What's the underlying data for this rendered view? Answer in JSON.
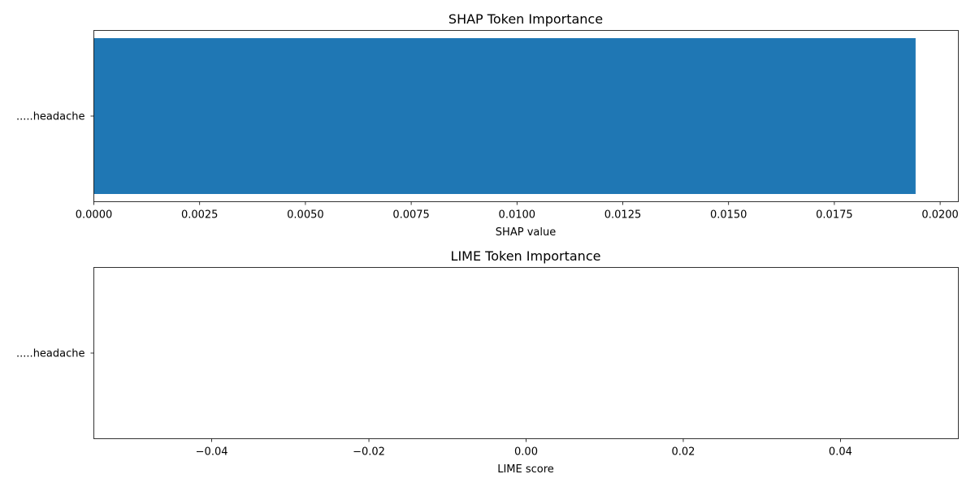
{
  "chart_data": [
    {
      "type": "bar",
      "orientation": "horizontal",
      "title": "SHAP Token Importance",
      "xlabel": "SHAP value",
      "ylabel": "",
      "categories": [
        ".....headache"
      ],
      "values": [
        0.01942
      ],
      "xlim": [
        0,
        0.02043
      ],
      "xticks": [
        0,
        0.0025,
        0.005,
        0.0075,
        0.01,
        0.0125,
        0.015,
        0.0175,
        0.02
      ],
      "xtick_labels": [
        "0.0000",
        "0.0025",
        "0.0050",
        "0.0075",
        "0.0100",
        "0.0125",
        "0.0150",
        "0.0175",
        "0.0200"
      ],
      "bar_color": "#1f77b4",
      "grid": false
    },
    {
      "type": "bar",
      "orientation": "horizontal",
      "title": "LIME Token Importance",
      "xlabel": "LIME score",
      "ylabel": "",
      "categories": [
        ".....headache"
      ],
      "values": [
        0
      ],
      "xlim": [
        -0.055,
        0.055
      ],
      "xticks": [
        -0.04,
        -0.02,
        0,
        0.02,
        0.04
      ],
      "xtick_labels": [
        "−0.04",
        "−0.02",
        "0.00",
        "0.02",
        "0.04"
      ],
      "bar_color": "#1f77b4",
      "grid": false
    }
  ]
}
